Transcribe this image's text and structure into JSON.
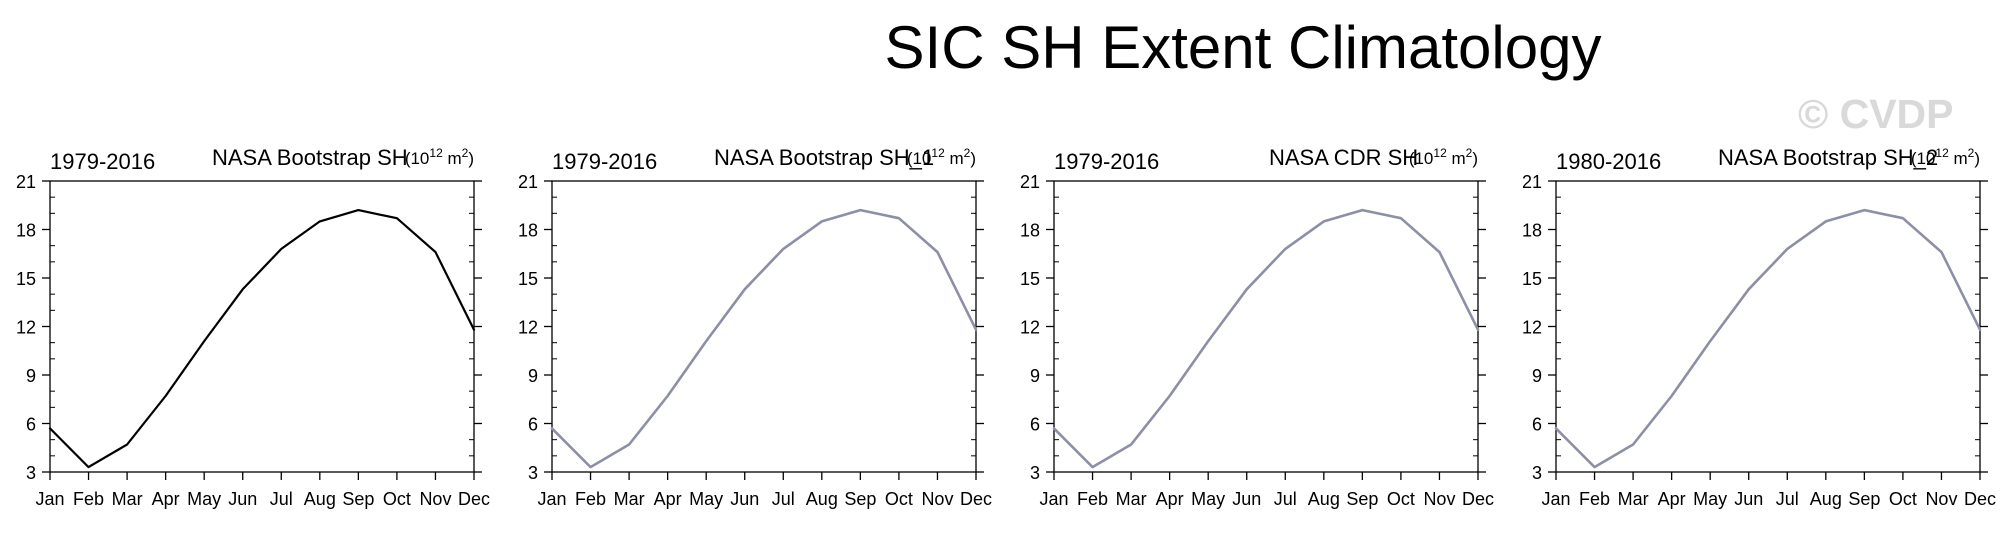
{
  "page": {
    "title": "SIC SH Extent Climatology",
    "watermark": "© CVDP",
    "units_prefix": "(10",
    "units_exp": "12",
    "units_mid": " m",
    "units_exp2": "2",
    "units_suffix": ")"
  },
  "colors": {
    "observation_line": "#000000",
    "model_line": "#8c8fa6"
  },
  "chart_data": [
    {
      "type": "line",
      "period": "1979-2016",
      "title": "NASA Bootstrap SH",
      "line_color": "#000000",
      "categories": [
        "Jan",
        "Feb",
        "Mar",
        "Apr",
        "May",
        "Jun",
        "Jul",
        "Aug",
        "Sep",
        "Oct",
        "Nov",
        "Dec"
      ],
      "values": [
        5.7,
        3.3,
        4.7,
        7.7,
        11.1,
        14.3,
        16.8,
        18.5,
        19.2,
        18.7,
        16.6,
        11.8
      ],
      "yticks": [
        3,
        6,
        9,
        12,
        15,
        18,
        21
      ],
      "ylim": [
        3,
        21
      ],
      "grid": false
    },
    {
      "type": "line",
      "period": "1979-2016",
      "title": "NASA Bootstrap SH_1",
      "line_color": "#8c8fa6",
      "categories": [
        "Jan",
        "Feb",
        "Mar",
        "Apr",
        "May",
        "Jun",
        "Jul",
        "Aug",
        "Sep",
        "Oct",
        "Nov",
        "Dec"
      ],
      "values": [
        5.7,
        3.3,
        4.7,
        7.7,
        11.1,
        14.3,
        16.8,
        18.5,
        19.2,
        18.7,
        16.6,
        11.8
      ],
      "yticks": [
        3,
        6,
        9,
        12,
        15,
        18,
        21
      ],
      "ylim": [
        3,
        21
      ],
      "grid": false
    },
    {
      "type": "line",
      "period": "1979-2016",
      "title": "NASA CDR SH",
      "line_color": "#8c8fa6",
      "categories": [
        "Jan",
        "Feb",
        "Mar",
        "Apr",
        "May",
        "Jun",
        "Jul",
        "Aug",
        "Sep",
        "Oct",
        "Nov",
        "Dec"
      ],
      "values": [
        5.7,
        3.3,
        4.7,
        7.7,
        11.1,
        14.3,
        16.8,
        18.5,
        19.2,
        18.7,
        16.6,
        11.8
      ],
      "yticks": [
        3,
        6,
        9,
        12,
        15,
        18,
        21
      ],
      "ylim": [
        3,
        21
      ],
      "grid": false
    },
    {
      "type": "line",
      "period": "1980-2016",
      "title": "NASA Bootstrap SH_2",
      "line_color": "#8c8fa6",
      "categories": [
        "Jan",
        "Feb",
        "Mar",
        "Apr",
        "May",
        "Jun",
        "Jul",
        "Aug",
        "Sep",
        "Oct",
        "Nov",
        "Dec"
      ],
      "values": [
        5.7,
        3.3,
        4.7,
        7.7,
        11.1,
        14.3,
        16.8,
        18.5,
        19.2,
        18.7,
        16.6,
        11.8
      ],
      "yticks": [
        3,
        6,
        9,
        12,
        15,
        18,
        21
      ],
      "ylim": [
        3,
        21
      ],
      "grid": false
    }
  ]
}
